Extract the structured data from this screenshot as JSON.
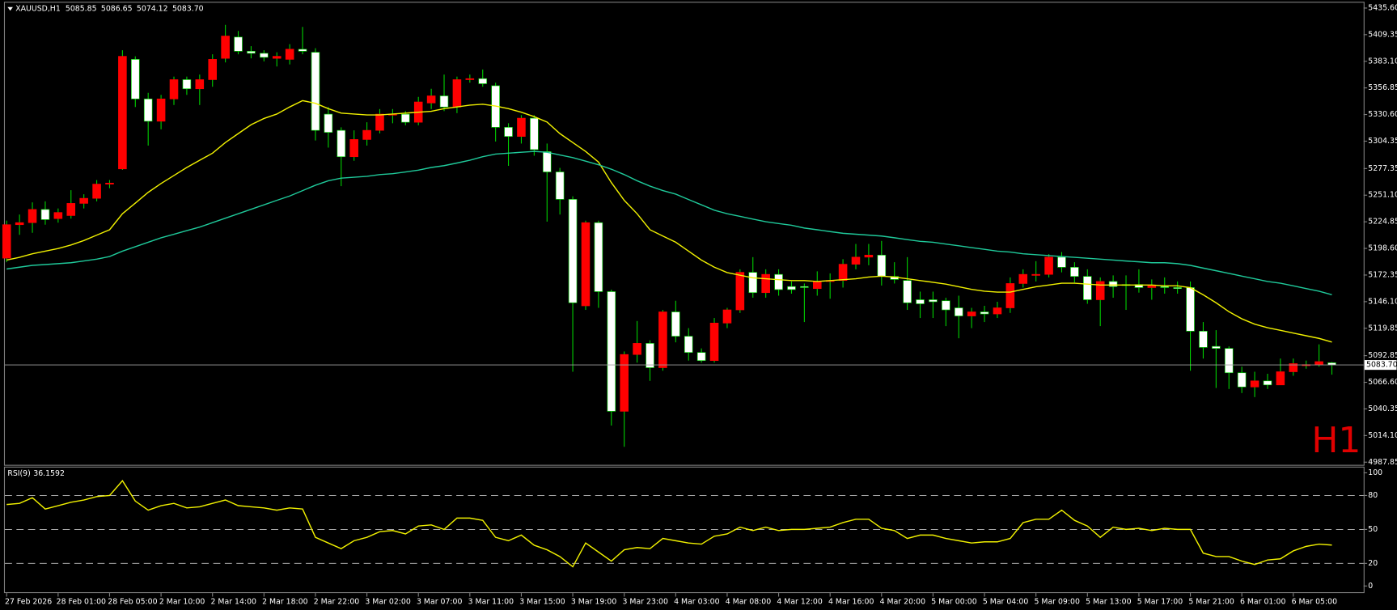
{
  "chart_data": [
    {
      "type": "candlestick",
      "title": "XAUUSD,H1",
      "ohlc_labels": [
        "5085.85",
        "5086.65",
        "5074.12",
        "5083.70"
      ],
      "watermark": "H1",
      "categories": [
        "27 Feb 2026",
        null,
        null,
        null,
        "28 Feb 01:00",
        null,
        null,
        null,
        "28 Feb 05:00",
        null,
        null,
        null,
        "2 Mar 10:00",
        null,
        null,
        null,
        "2 Mar 14:00",
        null,
        null,
        null,
        "2 Mar 18:00",
        null,
        null,
        null,
        "2 Mar 22:00",
        null,
        null,
        null,
        "3 Mar 02:00",
        null,
        null,
        null,
        "3 Mar 07:00",
        null,
        null,
        null,
        "3 Mar 11:00",
        null,
        null,
        null,
        "3 Mar 15:00",
        null,
        null,
        null,
        "3 Mar 19:00",
        null,
        null,
        null,
        "3 Mar 23:00",
        null,
        null,
        null,
        "4 Mar 03:00",
        null,
        null,
        null,
        "4 Mar 08:00",
        null,
        null,
        null,
        "4 Mar 12:00",
        null,
        null,
        null,
        "4 Mar 16:00",
        null,
        null,
        null,
        "4 Mar 20:00",
        null,
        null,
        null,
        "5 Mar 00:00",
        null,
        null,
        null,
        "5 Mar 04:00",
        null,
        null,
        null,
        "5 Mar 09:00",
        null,
        null,
        null,
        "5 Mar 13:00",
        null,
        null,
        null,
        "5 Mar 17:00",
        null,
        null,
        null,
        "5 Mar 21:00",
        null,
        null,
        null,
        "6 Mar 01:00",
        null,
        null,
        null,
        "6 Mar 05:00",
        null,
        null,
        null
      ],
      "open": [
        5189,
        5222,
        5224,
        5237,
        5228,
        5231,
        5243,
        5248,
        5262,
        5277,
        5385,
        5346,
        5324,
        5346,
        5365,
        5356,
        5365,
        5386,
        5407,
        5393,
        5391,
        5386,
        5385,
        5395,
        5392,
        5331,
        5315,
        5289,
        5306,
        5315,
        5330,
        5331,
        5323,
        5342,
        5349,
        5338,
        5365,
        5366,
        5359,
        5318,
        5309,
        5327,
        5294,
        5274,
        5247,
        5142,
        5224,
        5156,
        5038,
        5094,
        5105,
        5081,
        5136,
        5112,
        5096,
        5088,
        5125,
        5138,
        5175,
        5155,
        5173,
        5161,
        5161,
        5159,
        5166,
        5167,
        5183,
        5190,
        5192,
        5171,
        5167,
        5148,
        5148,
        5147,
        5140,
        5132,
        5136,
        5134,
        5140,
        5164,
        5172,
        5173,
        5190,
        5180,
        5171,
        5148,
        5166,
        5163,
        5163,
        5160,
        5161,
        5160,
        5160,
        5117,
        5102,
        5100,
        5076,
        5062,
        5068,
        5064,
        5077,
        5083,
        5084,
        5085.85
      ],
      "high": [
        5226,
        5232,
        5244,
        5245,
        5238,
        5256,
        5252,
        5266,
        5266,
        5394,
        5388,
        5352,
        5350,
        5368,
        5368,
        5370,
        5390,
        5419,
        5413,
        5398,
        5394,
        5392,
        5400,
        5417,
        5396,
        5338,
        5318,
        5315,
        5323,
        5336,
        5336,
        5334,
        5348,
        5356,
        5370,
        5368,
        5370,
        5375,
        5362,
        5322,
        5330,
        5330,
        5302,
        5278,
        5250,
        5226,
        5226,
        5158,
        5097,
        5127,
        5108,
        5138,
        5147,
        5120,
        5100,
        5130,
        5140,
        5178,
        5190,
        5178,
        5178,
        5166,
        5164,
        5176,
        5174,
        5188,
        5203,
        5203,
        5206,
        5185,
        5190,
        5156,
        5156,
        5150,
        5152,
        5140,
        5142,
        5146,
        5170,
        5178,
        5186,
        5193,
        5195,
        5185,
        5178,
        5170,
        5172,
        5172,
        5178,
        5168,
        5170,
        5166,
        5166,
        5126,
        5118,
        5102,
        5082,
        5077,
        5075,
        5090,
        5090,
        5088,
        5104,
        5086.65
      ],
      "low": [
        5185,
        5212,
        5214,
        5222,
        5224,
        5228,
        5238,
        5245,
        5258,
        5276,
        5338,
        5300,
        5316,
        5340,
        5350,
        5340,
        5358,
        5382,
        5390,
        5386,
        5383,
        5378,
        5380,
        5390,
        5305,
        5298,
        5260,
        5285,
        5300,
        5312,
        5322,
        5320,
        5320,
        5336,
        5334,
        5332,
        5362,
        5358,
        5304,
        5280,
        5302,
        5290,
        5225,
        5232,
        5077,
        5138,
        5140,
        5024,
        5003,
        5086,
        5068,
        5078,
        5106,
        5088,
        5086,
        5086,
        5120,
        5135,
        5150,
        5150,
        5152,
        5154,
        5126,
        5152,
        5149,
        5160,
        5178,
        5182,
        5162,
        5164,
        5138,
        5130,
        5130,
        5122,
        5110,
        5120,
        5126,
        5130,
        5135,
        5160,
        5166,
        5170,
        5175,
        5165,
        5144,
        5122,
        5150,
        5138,
        5155,
        5148,
        5154,
        5154,
        5078,
        5090,
        5061,
        5060,
        5056,
        5052,
        5060,
        5064,
        5073,
        5080,
        5082,
        5074.12
      ],
      "close": [
        5222,
        5224,
        5237,
        5227,
        5234,
        5243,
        5248,
        5262,
        5263,
        5388,
        5346,
        5324,
        5346,
        5365,
        5356,
        5365,
        5385,
        5408,
        5393,
        5391,
        5387,
        5388,
        5395,
        5393,
        5315,
        5313,
        5289,
        5306,
        5315,
        5331,
        5331,
        5323,
        5343,
        5349,
        5338,
        5365,
        5366,
        5361,
        5318,
        5309,
        5327,
        5296,
        5274,
        5247,
        5145,
        5224,
        5156,
        5038,
        5094,
        5105,
        5081,
        5136,
        5112,
        5096,
        5088,
        5125,
        5138,
        5175,
        5155,
        5173,
        5158,
        5158,
        5160,
        5166,
        5167,
        5183,
        5190,
        5192,
        5171,
        5168,
        5145,
        5144,
        5146,
        5138,
        5132,
        5136,
        5134,
        5140,
        5164,
        5173,
        5173,
        5190,
        5180,
        5171,
        5148,
        5166,
        5161,
        5162,
        5160,
        5162,
        5160,
        5159,
        5117,
        5101,
        5100,
        5076,
        5062,
        5068,
        5064,
        5077,
        5085,
        5084,
        5087,
        5083.7
      ],
      "up_color": "#ff0000",
      "down_color": "#ffffff",
      "wick_color": "#00d000",
      "overlays": [
        {
          "color": "#f0f000",
          "values": [
            5187.1,
            5189.8,
            5193.3,
            5195.9,
            5198.5,
            5202.0,
            5206.4,
            5211.7,
            5217.0,
            5232.8,
            5243.3,
            5253.9,
            5262.6,
            5270.5,
            5278.4,
            5285.5,
            5292.5,
            5303.0,
            5311.8,
            5320.6,
            5326.7,
            5331.1,
            5338.1,
            5344.3,
            5341.7,
            5336.4,
            5332.0,
            5331.1,
            5330.2,
            5330.2,
            5331.1,
            5332.0,
            5332.9,
            5333.8,
            5336.4,
            5338.1,
            5339.9,
            5340.8,
            5339.0,
            5336.4,
            5332.9,
            5328.5,
            5323.2,
            5311.8,
            5303.0,
            5294.2,
            5283.7,
            5263.5,
            5246.0,
            5232.8,
            5217.0,
            5210.8,
            5204.7,
            5195.9,
            5187.1,
            5180.1,
            5174.8,
            5172.2,
            5169.6,
            5168.7,
            5167.8,
            5166.9,
            5166.9,
            5166.0,
            5166.9,
            5167.8,
            5168.7,
            5170.4,
            5171.3,
            5170.4,
            5168.7,
            5166.9,
            5165.2,
            5163.4,
            5160.8,
            5158.2,
            5156.4,
            5155.5,
            5155.5,
            5158.2,
            5160.8,
            5162.5,
            5164.3,
            5164.3,
            5163.4,
            5162.5,
            5162.5,
            5162.5,
            5162.5,
            5162.5,
            5161.7,
            5161.7,
            5159.9,
            5152.9,
            5145.0,
            5136.2,
            5129.2,
            5123.9,
            5120.4,
            5117.8,
            5115.1,
            5112.5,
            5109.9,
            5106.3
          ]
        },
        {
          "color": "#1fc99a",
          "values": [
            5178.3,
            5180.1,
            5181.9,
            5182.7,
            5183.6,
            5184.5,
            5186.2,
            5188.0,
            5190.6,
            5195.9,
            5200.3,
            5204.7,
            5209.1,
            5212.6,
            5216.1,
            5219.6,
            5224.0,
            5228.4,
            5232.8,
            5237.2,
            5241.6,
            5246.0,
            5250.3,
            5255.6,
            5260.9,
            5265.3,
            5267.9,
            5268.8,
            5269.7,
            5271.4,
            5272.3,
            5274.0,
            5275.8,
            5278.4,
            5280.2,
            5282.8,
            5285.5,
            5289.0,
            5291.6,
            5292.5,
            5293.4,
            5294.2,
            5293.4,
            5290.7,
            5288.1,
            5284.6,
            5281.1,
            5276.7,
            5271.4,
            5265.3,
            5260.0,
            5255.6,
            5252.1,
            5246.8,
            5241.6,
            5236.3,
            5232.8,
            5230.2,
            5227.5,
            5224.9,
            5223.1,
            5221.4,
            5218.7,
            5217.0,
            5215.2,
            5213.5,
            5212.6,
            5211.7,
            5210.8,
            5209.1,
            5207.3,
            5205.6,
            5204.7,
            5202.9,
            5201.2,
            5199.4,
            5197.7,
            5195.9,
            5195.0,
            5193.3,
            5192.4,
            5191.5,
            5190.6,
            5189.8,
            5188.9,
            5188.0,
            5187.1,
            5186.2,
            5185.4,
            5184.5,
            5184.5,
            5183.6,
            5181.9,
            5179.2,
            5176.6,
            5174.0,
            5171.3,
            5168.7,
            5166.0,
            5164.3,
            5161.7,
            5159.0,
            5156.4,
            5152.9
          ]
        }
      ],
      "current_price": {
        "value": 5083.7,
        "label": "5083.70"
      },
      "ylim": [
        4985.2,
        5440.9
      ],
      "yticks": [
        {
          "value": 5435.6,
          "label": "5435.60"
        },
        5409.35,
        {
          "value": 5383.1,
          "label": "5383.10"
        },
        5356.85,
        {
          "value": 5330.6,
          "label": "5330.60"
        },
        5304.35,
        5277.35,
        {
          "value": 5251.1,
          "label": "5251.10"
        },
        5224.85,
        {
          "value": 5198.6,
          "label": "5198.60"
        },
        5172.35,
        {
          "value": 5146.1,
          "label": "5146.10"
        },
        5119.85,
        5092.85,
        {
          "value": 5066.6,
          "label": "5066.60"
        },
        5040.35,
        {
          "value": 5014.1,
          "label": "5014.10"
        },
        4987.85
      ]
    },
    {
      "type": "line",
      "title": "RSI(9)",
      "series": [
        {
          "color": "#f0f000",
          "values": [
            72,
            73,
            78,
            68,
            71,
            74,
            76,
            79,
            80,
            93,
            75,
            67,
            71,
            73,
            69,
            70,
            73,
            76,
            71,
            70,
            69,
            67,
            69,
            68,
            43,
            38,
            33,
            40,
            43,
            48,
            49,
            46,
            53,
            54,
            50,
            60,
            60,
            58,
            43,
            40,
            45,
            36,
            32,
            26,
            17,
            38,
            30,
            22,
            32,
            34,
            33,
            42,
            40,
            38,
            37,
            44,
            46,
            52,
            49,
            52,
            49,
            50,
            50,
            51,
            52,
            56,
            59,
            59,
            51,
            49,
            42,
            45,
            45,
            42,
            40,
            38,
            39,
            39,
            42,
            56,
            59,
            59,
            67,
            58,
            53,
            43,
            52,
            50,
            51,
            49,
            51,
            50,
            50,
            29,
            26,
            26,
            22,
            19,
            23,
            24,
            31,
            35,
            37,
            36.1592
          ]
        }
      ],
      "levels": [
        80,
        50,
        20
      ],
      "ylim": [
        -4.7,
        104.7
      ],
      "yticks": [
        100,
        80,
        50,
        20,
        0
      ]
    }
  ]
}
